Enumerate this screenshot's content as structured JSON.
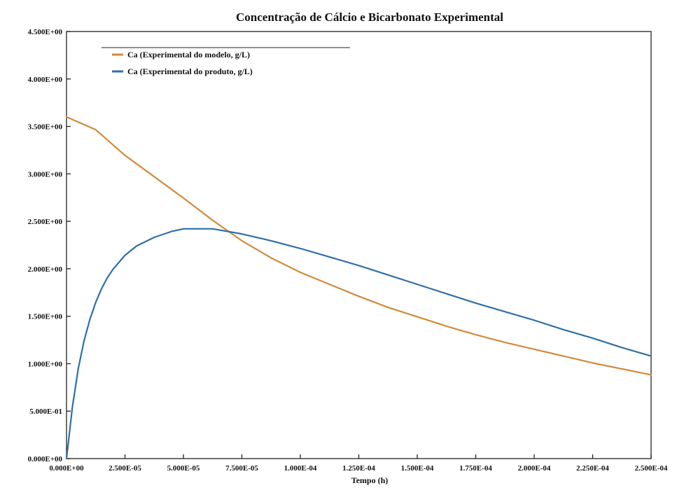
{
  "chart_data": {
    "type": "line",
    "title": "Concentração de Cálcio e Bicarbonato Experimental",
    "xlabel": "Tempo (h)",
    "ylabel": "",
    "xlim": [
      0,
      0.00025
    ],
    "ylim": [
      0.5,
      0.3
    ],
    "x_ticks": [
      "0.000E+00",
      "2.500E-05",
      "5.000E-05",
      "7.500E-05",
      "1.000E-04",
      "1.250E-04",
      "1.500E-04",
      "1.750E-04",
      "2.000E-04",
      "2.250E-04",
      "2.500E-04"
    ],
    "y_ticks": [
      "4.500E+00",
      "4.000E+00",
      "3.500E+00",
      "3.000E+00",
      "2.500E+00",
      "2.000E+00",
      "1.500E+00",
      "1.000E+00",
      "5.000E-01",
      "0.000E+00"
    ],
    "grid": false,
    "legend_position": "top-left",
    "series": [
      {
        "name": "Ca (Experimental do modelo, g/L)",
        "color": "#d08a3c",
        "x": [
          0,
          1.25e-05,
          2.5e-05,
          3.75e-05,
          5e-05,
          6.25e-05,
          7.5e-05,
          8.75e-05,
          0.0001,
          0.0001125,
          0.000125,
          0.0001375,
          0.00015,
          0.0001625,
          0.000175,
          0.0001875,
          0.0002,
          0.0002125,
          0.000225,
          0.0002375,
          0.00025
        ],
        "y": [
          4.0,
          3.85,
          3.55,
          3.3,
          3.05,
          2.79,
          2.55,
          2.35,
          2.18,
          2.04,
          1.9,
          1.77,
          1.66,
          1.55,
          1.45,
          1.36,
          1.28,
          1.2,
          1.12,
          1.05,
          0.98
        ]
      },
      {
        "name": "Ca (Experimental do produto, g/L)",
        "color": "#2f6fa8",
        "x": [
          0,
          2.5e-06,
          5e-06,
          7.5e-06,
          1e-05,
          1.25e-05,
          1.5e-05,
          1.75e-05,
          2e-05,
          2.5e-05,
          3e-05,
          3.75e-05,
          4.5e-05,
          5e-05,
          6.25e-05,
          7.5e-05,
          8.75e-05,
          0.0001,
          0.0001125,
          0.000125,
          0.0001375,
          0.00015,
          0.0001625,
          0.000175,
          0.0001875,
          0.0002,
          0.0002125,
          0.000225,
          0.0002375,
          0.00025
        ],
        "y": [
          0.0,
          0.6,
          1.05,
          1.38,
          1.63,
          1.83,
          1.99,
          2.12,
          2.22,
          2.38,
          2.49,
          2.59,
          2.66,
          2.69,
          2.69,
          2.63,
          2.55,
          2.46,
          2.36,
          2.26,
          2.15,
          2.04,
          1.93,
          1.82,
          1.72,
          1.62,
          1.51,
          1.41,
          1.3,
          1.2
        ]
      }
    ]
  }
}
